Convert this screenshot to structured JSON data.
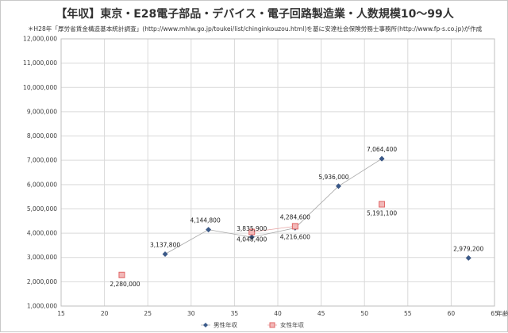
{
  "chart_data": {
    "type": "scatter",
    "title": "【年収】東京・E28電子部品・デバイス・電子回路製造業・人数規模10〜99人",
    "subtitle": "＊H28年「厚労省賃金構造基本統計調査」(http://www.mhlw.go.jp/toukei/list/chinginkouzou.html)を基に安達社会保険労務士事務所(http://www.fp-s.co.jp)が作成",
    "xlabel": "年齢",
    "ylabel": "",
    "xlim": [
      15,
      65
    ],
    "ylim": [
      1000000,
      12000000
    ],
    "x_ticks": [
      "15",
      "20",
      "25",
      "30",
      "35",
      "40",
      "45",
      "50",
      "55",
      "60",
      "65"
    ],
    "y_ticks": [
      "1,000,000",
      "2,000,000",
      "3,000,000",
      "4,000,000",
      "5,000,000",
      "6,000,000",
      "7,000,000",
      "8,000,000",
      "9,000,000",
      "10,000,000",
      "11,000,000",
      "12,000,000"
    ],
    "grid": true,
    "legend_position": "bottom",
    "series": [
      {
        "name": "男性年収",
        "color": "#3b5a8a",
        "marker": "diamond",
        "points": [
          {
            "x": 27,
            "y": 3137800,
            "label": "3,137,800"
          },
          {
            "x": 32,
            "y": 4144800,
            "label": "4,144,800"
          },
          {
            "x": 37,
            "y": 3835900,
            "label": "3,835,900"
          },
          {
            "x": 42,
            "y": 4216600,
            "label": "4,216,600"
          },
          {
            "x": 47,
            "y": 5936000,
            "label": "5,936,000"
          },
          {
            "x": 52,
            "y": 7064400,
            "label": "7,064,400"
          },
          {
            "x": 62,
            "y": 2979200,
            "label": "2,979,200"
          }
        ]
      },
      {
        "name": "女性年収",
        "color": "#e06666",
        "marker": "square",
        "points": [
          {
            "x": 22,
            "y": 2280000,
            "label": "2,280,000"
          },
          {
            "x": 37,
            "y": 4048400,
            "label": "4,048,400"
          },
          {
            "x": 42,
            "y": 4284600,
            "label": "4,284,600"
          },
          {
            "x": 52,
            "y": 5191100,
            "label": "5,191,100"
          }
        ]
      }
    ]
  }
}
